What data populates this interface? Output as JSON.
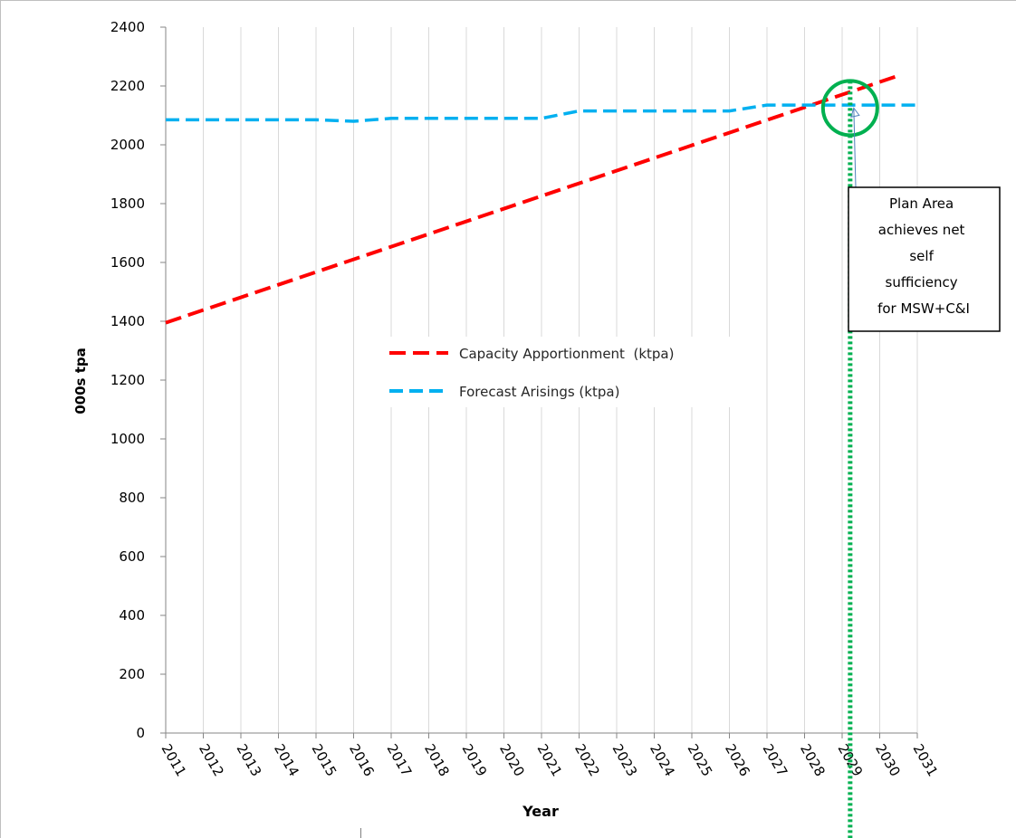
{
  "chart_data": {
    "type": "line",
    "title": "",
    "xlabel": "Year",
    "ylabel": "000s tpa",
    "ylim": [
      0,
      2400
    ],
    "yticks": [
      0,
      200,
      400,
      600,
      800,
      1000,
      1200,
      1400,
      1600,
      1800,
      2000,
      2200,
      2400
    ],
    "categories": [
      "2011",
      "2012",
      "2013",
      "2014",
      "2015",
      "2016",
      "2017",
      "2018",
      "2019",
      "2020",
      "2021",
      "2022",
      "2023",
      "2024",
      "2025",
      "2026",
      "2027",
      "2028",
      "2029",
      "2030",
      "2031"
    ],
    "grid": "vertical",
    "legend_placement": "center",
    "series": [
      {
        "name": "Capacity Apportionment  (ktpa)",
        "color": "#ff0000",
        "style": "dashed",
        "x": [
          0,
          19.5
        ],
        "values": [
          1395,
          2235
        ]
      },
      {
        "name": "Forecast Arisings (ktpa)",
        "color": "#00b0f0",
        "style": "dashed",
        "x": [
          0,
          1,
          2,
          3,
          4,
          5,
          6,
          7,
          8,
          9,
          10,
          11,
          12,
          13,
          14,
          15,
          16,
          17,
          18,
          19,
          20
        ],
        "values": [
          2085,
          2085,
          2085,
          2085,
          2085,
          2080,
          2090,
          2090,
          2090,
          2090,
          2090,
          2115,
          2115,
          2115,
          2115,
          2115,
          2135,
          2135,
          2135,
          2135,
          2135
        ]
      }
    ],
    "annotations": {
      "callout_text": [
        "Plan Area",
        "achieves net",
        "self",
        "sufficiency",
        "for MSW+C&I"
      ],
      "marker_color": "#00b050",
      "crossover_x": 17.9,
      "crossover_y": 2125
    }
  }
}
